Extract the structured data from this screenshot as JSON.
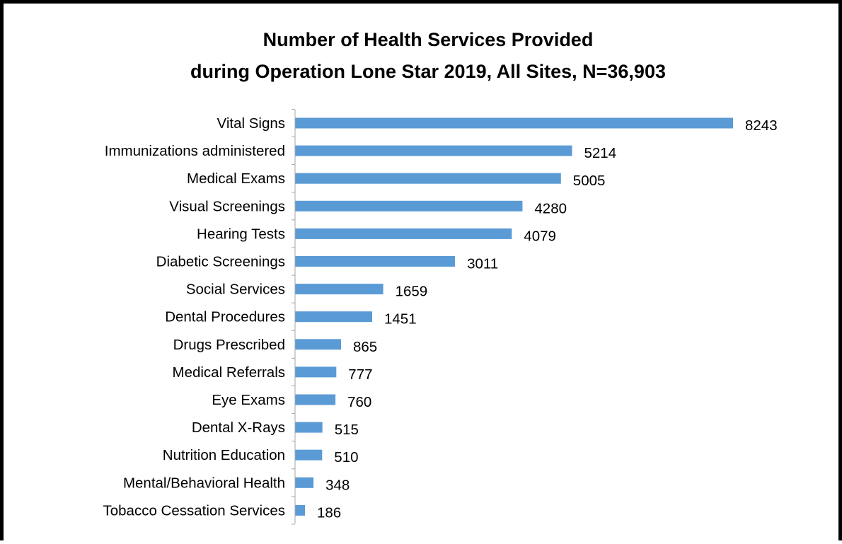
{
  "chart_data": {
    "type": "bar",
    "orientation": "horizontal",
    "title": "Number of Health Services Provided",
    "subtitle": "during Operation Lone Star 2019, All Sites, N=36,903",
    "categories": [
      "Vital Signs",
      "Immunizations administered",
      "Medical Exams",
      "Visual Screenings",
      "Hearing Tests",
      "Diabetic Screenings",
      "Social Services",
      "Dental Procedures",
      "Drugs Prescribed",
      "Medical Referrals",
      "Eye Exams",
      "Dental X-Rays",
      "Nutrition Education",
      "Mental/Behavioral Health",
      "Tobacco Cessation Services"
    ],
    "values": [
      8243,
      5214,
      5005,
      4280,
      4079,
      3011,
      1659,
      1451,
      865,
      777,
      760,
      515,
      510,
      348,
      186
    ],
    "data_labels": [
      "8243",
      "5214",
      "5005",
      "4280",
      "4079",
      "3011",
      "1659",
      "1451",
      "865",
      "777",
      "760",
      "515",
      "510",
      "348",
      "186"
    ],
    "xlim": [
      0,
      8243
    ],
    "bar_color": "#5b9bd5",
    "axis_color": "#a6a6a6",
    "grid": false,
    "legend": "none"
  }
}
